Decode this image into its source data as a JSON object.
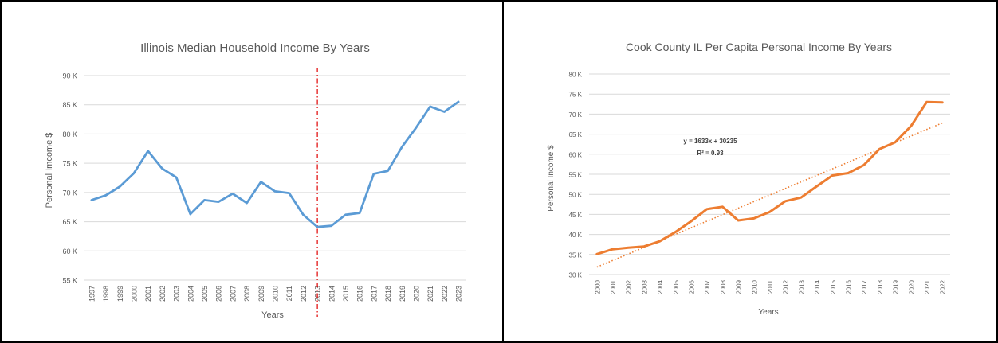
{
  "chart_data": [
    {
      "type": "line",
      "title": "Illinois Median Household Income By Years",
      "xlabel": "Years",
      "ylabel": "Personal Imcome $",
      "ylim": [
        55000,
        90000
      ],
      "yticks": [
        55000,
        60000,
        65000,
        70000,
        75000,
        80000,
        85000,
        90000
      ],
      "ytick_labels": [
        "55 K",
        "60 K",
        "65 K",
        "70 K",
        "75 K",
        "80 K",
        "85 K",
        "90 K"
      ],
      "grid": true,
      "series_color": "#5b9bd5",
      "marker_line": {
        "x": "2013",
        "color": "#e00000",
        "style": "dash-dot"
      },
      "categories": [
        "1997",
        "1998",
        "1999",
        "2000",
        "2001",
        "2002",
        "2003",
        "2004",
        "2005",
        "2006",
        "2007",
        "2008",
        "2009",
        "2010",
        "2011",
        "2012",
        "2013",
        "2014",
        "2015",
        "2016",
        "2017",
        "2018",
        "2019",
        "2020",
        "2021",
        "2022",
        "2023"
      ],
      "series": [
        {
          "values": [
            68700,
            69500,
            71000,
            73300,
            77100,
            74100,
            72600,
            66300,
            68700,
            68400,
            69800,
            68200,
            71800,
            70200,
            69900,
            66200,
            64100,
            64300,
            66200,
            66500,
            73200,
            73700,
            77800,
            81100,
            84700,
            83800,
            85500
          ]
        }
      ]
    },
    {
      "type": "line",
      "title": "Cook County IL Per Capita Personal Income By Years",
      "xlabel": "Years",
      "ylabel": "Personal Income $",
      "ylim": [
        30000,
        80000
      ],
      "yticks": [
        30000,
        35000,
        40000,
        45000,
        50000,
        55000,
        60000,
        65000,
        70000,
        75000,
        80000
      ],
      "ytick_labels": [
        "30 K",
        "35 K",
        "40 K",
        "45 K",
        "50 K",
        "55 K",
        "60 K",
        "65 K",
        "70 K",
        "75 K",
        "80 K"
      ],
      "grid": true,
      "series_color": "#ed7d31",
      "categories": [
        "2000",
        "2001",
        "2002",
        "2003",
        "2004",
        "2005",
        "2006",
        "2007",
        "2008",
        "2009",
        "2010",
        "2011",
        "2012",
        "2013",
        "2014",
        "2015",
        "2016",
        "2017",
        "2018",
        "2019",
        "2020",
        "2021",
        "2022"
      ],
      "series": [
        {
          "values": [
            35100,
            36300,
            36700,
            37000,
            38300,
            40600,
            43300,
            46300,
            46900,
            43500,
            44000,
            45600,
            48300,
            49200,
            52000,
            54700,
            55300,
            57300,
            61300,
            63000,
            67000,
            73000,
            72900
          ]
        }
      ],
      "trendline": {
        "equation": "y = 1633x + 30235",
        "r2": "R² = 0.93",
        "slope": 1633,
        "intercept": 30235
      }
    }
  ]
}
